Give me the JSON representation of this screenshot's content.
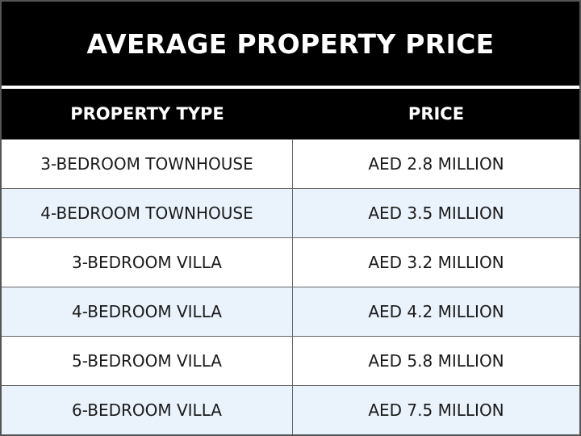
{
  "table": {
    "title": "AVERAGE PROPERTY PRICE",
    "headers": {
      "type": "PROPERTY TYPE",
      "price": "PRICE"
    },
    "rows": [
      {
        "type": "3-BEDROOM TOWNHOUSE",
        "price": "AED 2.8 MILLION"
      },
      {
        "type": "4-BEDROOM TOWNHOUSE",
        "price": "AED 3.5 MILLION"
      },
      {
        "type": "3-BEDROOM VILLA",
        "price": "AED 3.2 MILLION"
      },
      {
        "type": "4-BEDROOM VILLA",
        "price": "AED 4.2 MILLION"
      },
      {
        "type": "5-BEDROOM VILLA",
        "price": "AED 5.8 MILLION"
      },
      {
        "type": "6-BEDROOM VILLA",
        "price": "AED 7.5 MILLION"
      }
    ]
  },
  "colors": {
    "header_background": "#000000",
    "header_text": "#ffffff",
    "alternate_row": "#eaf3fc",
    "row_text": "#1a1a1a"
  }
}
